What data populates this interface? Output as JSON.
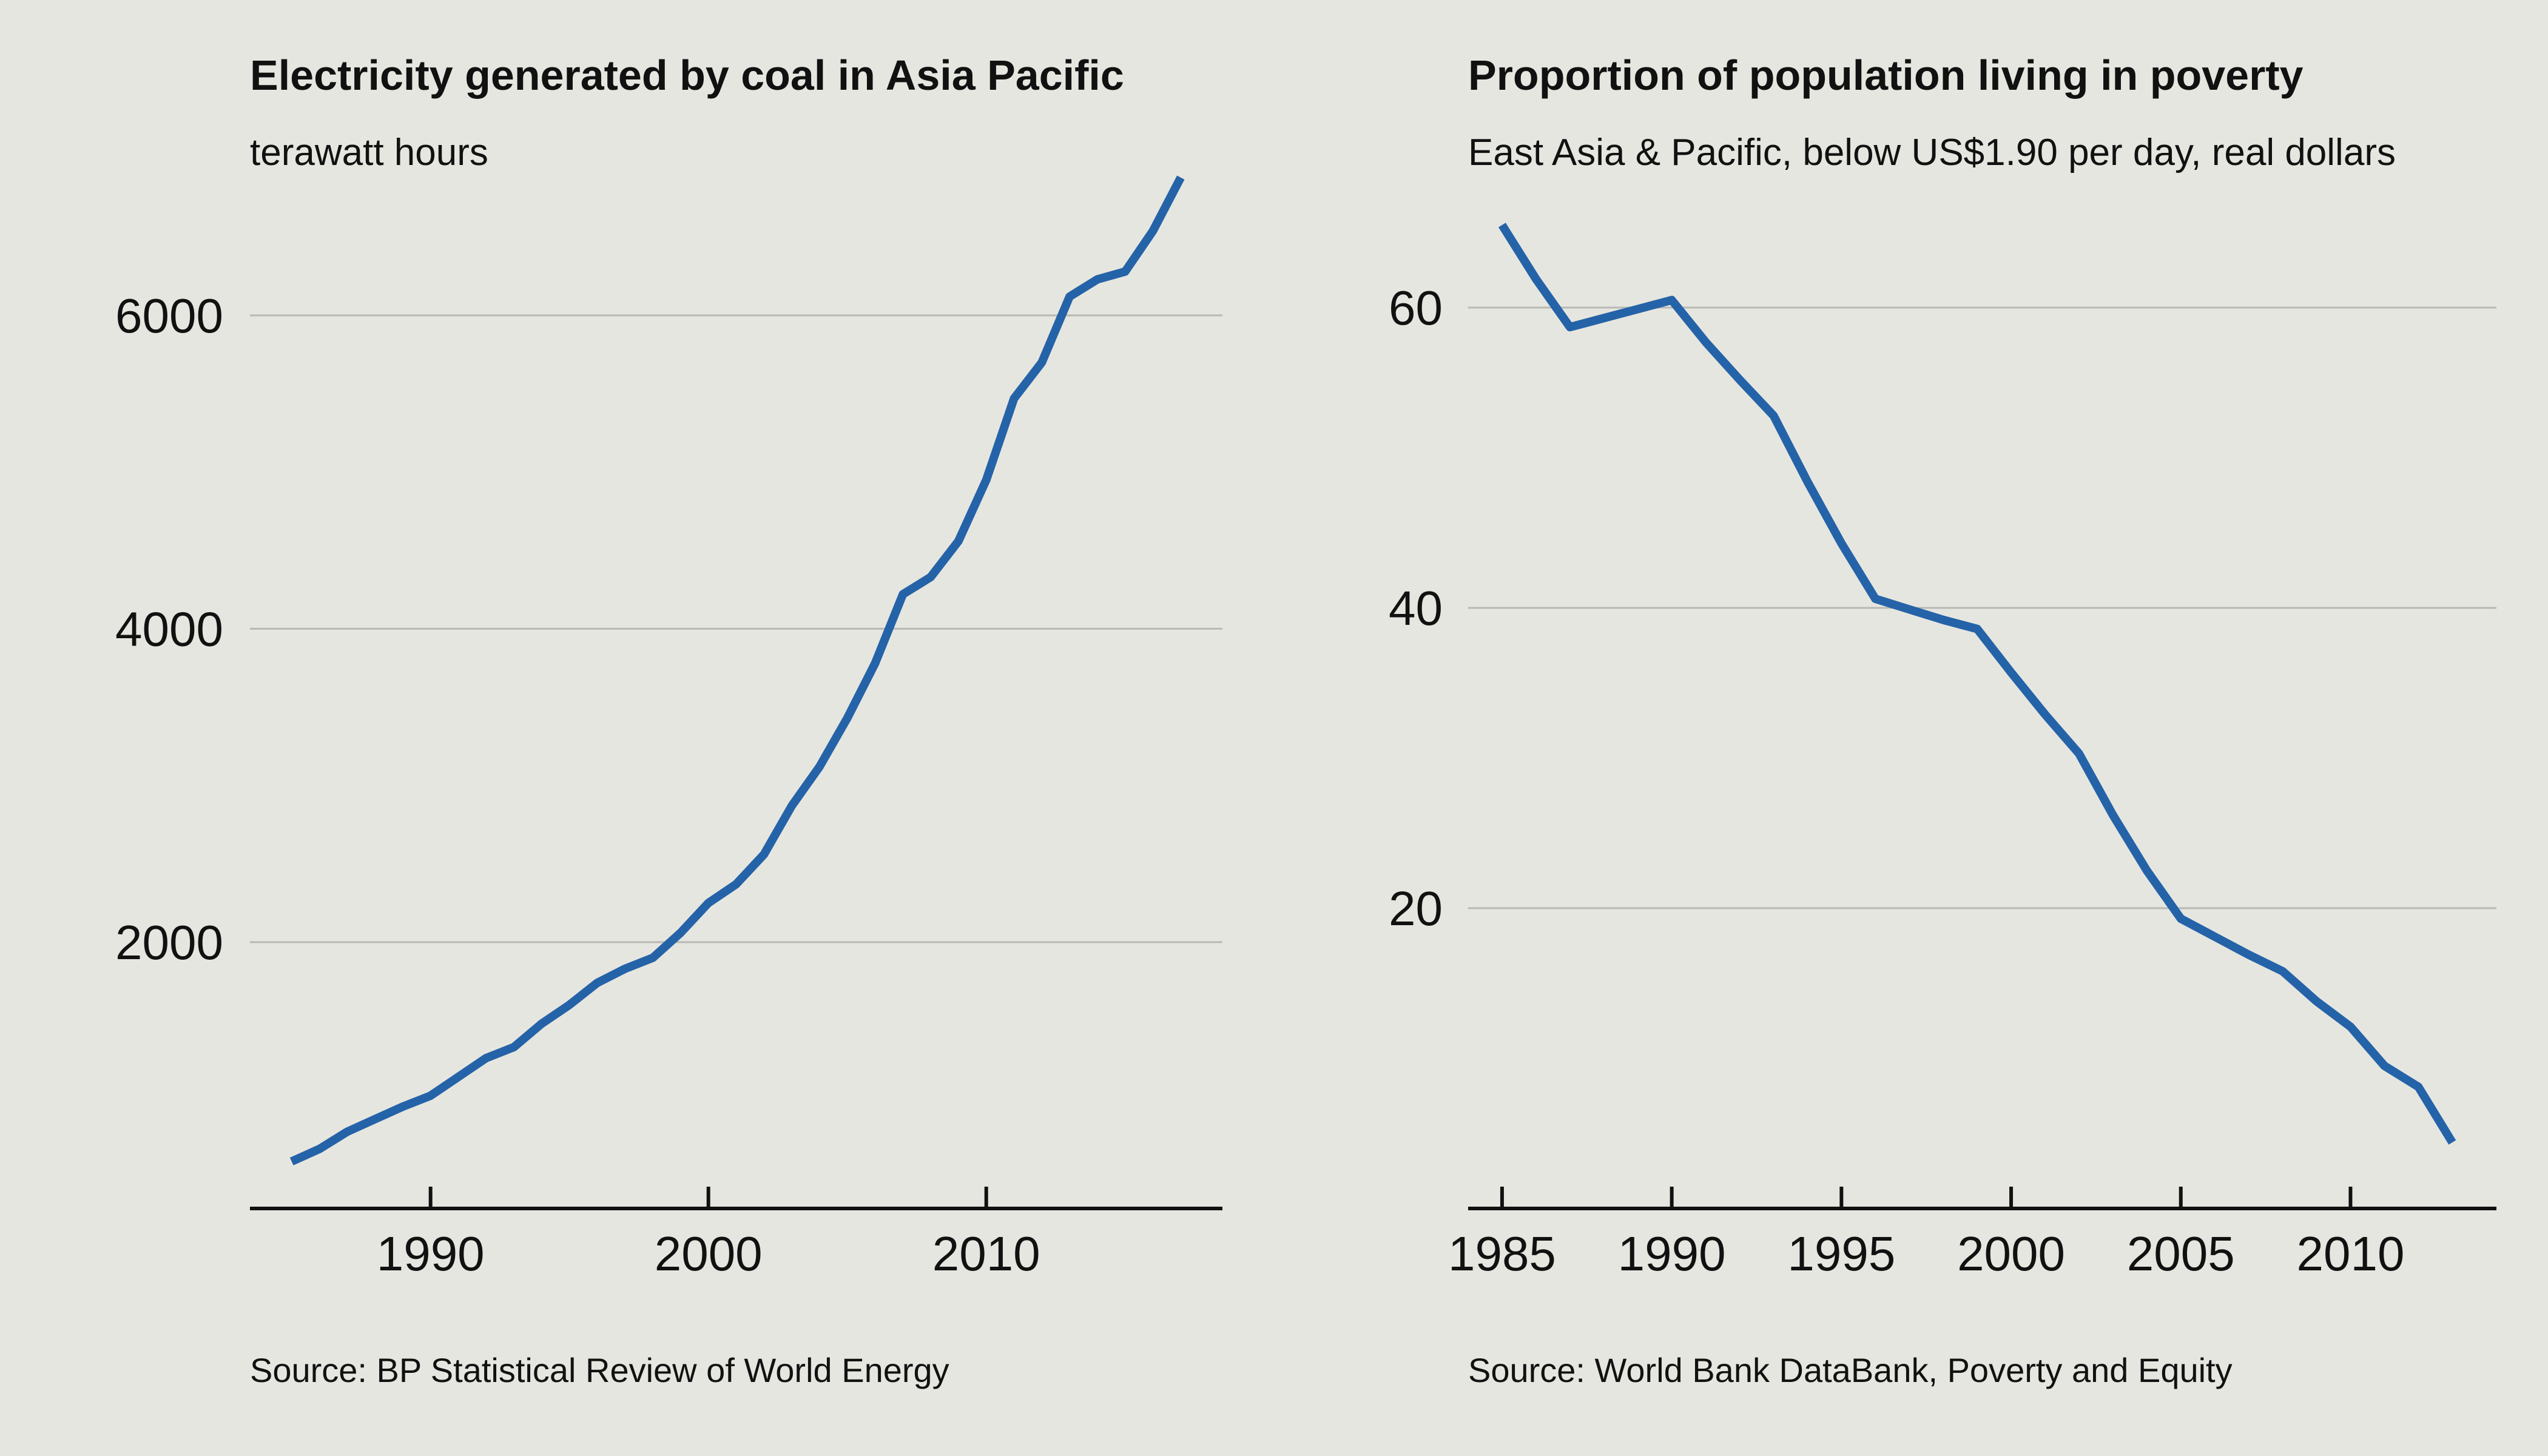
{
  "chart_data": [
    {
      "type": "line",
      "title": "Electricity generated by coal in Asia Pacific",
      "subtitle": "terawatt hours",
      "source": "Source: BP Statistical Review of World Energy",
      "xlim": [
        1983.5,
        2018.5
      ],
      "ylim": [
        300,
        7200
      ],
      "x_ticks": [
        1990,
        2000,
        2010
      ],
      "y_ticks": [
        2000,
        4000,
        6000
      ],
      "grid": true,
      "line_color": "#2563a8",
      "series": [
        {
          "x": [
            1985,
            1986,
            1987,
            1988,
            1989,
            1990,
            1991,
            1992,
            1993,
            1994,
            1995,
            1996,
            1997,
            1998,
            1999,
            2000,
            2001,
            2002,
            2003,
            2004,
            2005,
            2006,
            2007,
            2008,
            2009,
            2010,
            2011,
            2012,
            2013,
            2014,
            2015,
            2016,
            2017
          ],
          "values": [
            600,
            680,
            790,
            870,
            950,
            1020,
            1140,
            1260,
            1330,
            1480,
            1600,
            1740,
            1830,
            1900,
            2060,
            2250,
            2370,
            2560,
            2870,
            3120,
            3430,
            3780,
            4220,
            4330,
            4560,
            4950,
            5470,
            5700,
            6120,
            6230,
            6280,
            6540,
            6880
          ]
        }
      ]
    },
    {
      "type": "line",
      "title": "Proportion of population living in poverty",
      "subtitle": "East Asia & Pacific, below US$1.90 per day, real dollars",
      "source": "Source: World Bank DataBank, Poverty and Equity",
      "xlim": [
        1984,
        2014.3
      ],
      "ylim": [
        0,
        72
      ],
      "x_ticks": [
        1985,
        1990,
        1995,
        2000,
        2005,
        2010
      ],
      "y_ticks": [
        20,
        40,
        60
      ],
      "grid": true,
      "line_color": "#2563a8",
      "series": [
        {
          "x": [
            1985,
            1986,
            1987,
            1988,
            1989,
            1990,
            1991,
            1992,
            1993,
            1994,
            1995,
            1996,
            1997,
            1998,
            1999,
            2000,
            2001,
            2002,
            2003,
            2004,
            2005,
            2006,
            2007,
            2008,
            2009,
            2010,
            2011,
            2012,
            2013
          ],
          "values": [
            65.5,
            61.9,
            58.7,
            59.3,
            59.9,
            60.5,
            57.7,
            55.2,
            52.8,
            48.4,
            44.3,
            40.6,
            39.9,
            39.2,
            38.6,
            35.7,
            32.9,
            30.3,
            26.2,
            22.5,
            19.3,
            18.1,
            16.9,
            15.8,
            13.8,
            12.1,
            9.5,
            8.1,
            4.4
          ]
        }
      ]
    }
  ]
}
